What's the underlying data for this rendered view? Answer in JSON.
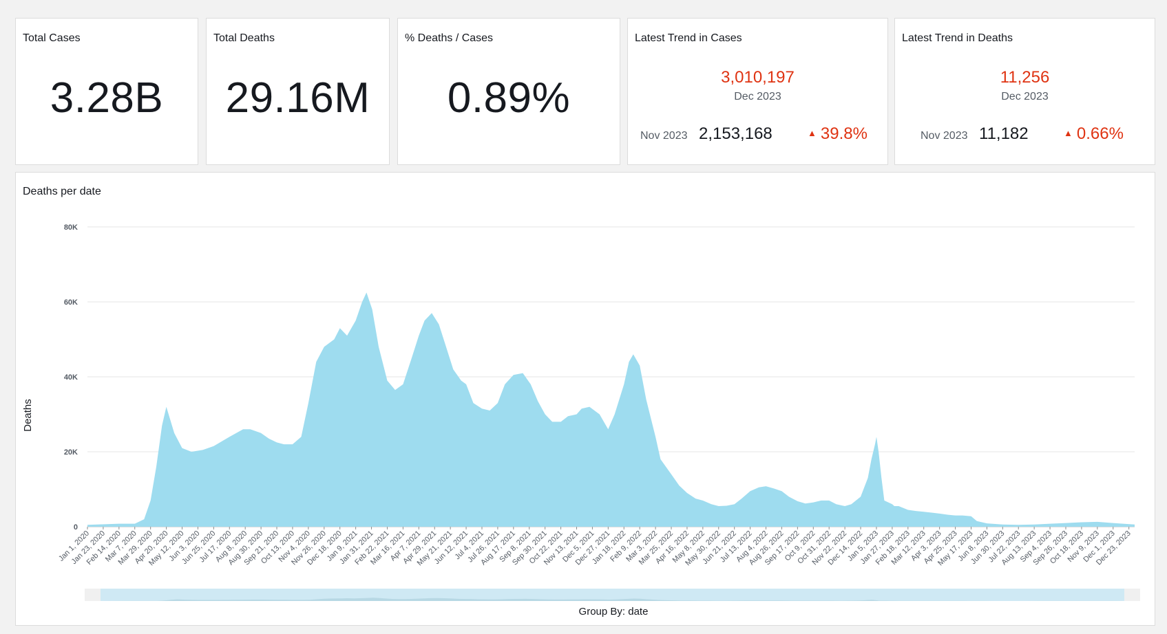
{
  "colors": {
    "accent": "#df3312",
    "area": "#9edcef",
    "grid": "#e4e4e4"
  },
  "kpis": {
    "total_cases": {
      "title": "Total Cases",
      "value": "3.28B"
    },
    "total_deaths": {
      "title": "Total Deaths",
      "value": "29.16M"
    },
    "pct_deaths": {
      "title": "% Deaths / Cases",
      "value": "0.89%"
    },
    "trend_cases": {
      "title": "Latest Trend in Cases",
      "current": "3,010,197",
      "current_period": "Dec 2023",
      "previous_period": "Nov 2023",
      "previous": "2,153,168",
      "change": "39.8%"
    },
    "trend_deaths": {
      "title": "Latest Trend in Deaths",
      "current": "11,256",
      "current_period": "Dec 2023",
      "previous_period": "Nov 2023",
      "previous": "11,182",
      "change": "0.66%"
    }
  },
  "chart": {
    "title": "Deaths per date",
    "ylabel": "Deaths",
    "group_by": "Group By: date"
  },
  "chart_data": {
    "type": "area",
    "title": "Deaths per date",
    "xlabel": "",
    "ylabel": "Deaths",
    "ylim": [
      0,
      80000
    ],
    "yticks": [
      "0",
      "20K",
      "40K",
      "60K",
      "80K"
    ],
    "x_start": "Jan 1, 2020",
    "x_end": "Dec 31, 2023",
    "xticks": [
      "Jan 1, 2020",
      "Jan 23, 2020",
      "Feb 14, 2020",
      "Mar 7, 2020",
      "Mar 29, 2020",
      "Apr 20, 2020",
      "May 12, 2020",
      "Jun 3, 2020",
      "Jun 25, 2020",
      "Jul 17, 2020",
      "Aug 8, 2020",
      "Aug 30, 2020",
      "Sep 21, 2020",
      "Oct 13, 2020",
      "Nov 4, 2020",
      "Nov 26, 2020",
      "Dec 18, 2020",
      "Jan 9, 2021",
      "Jan 31, 2021",
      "Feb 22, 2021",
      "Mar 16, 2021",
      "Apr 7, 2021",
      "Apr 29, 2021",
      "May 21, 2021",
      "Jun 12, 2021",
      "Jul 4, 2021",
      "Jul 26, 2021",
      "Aug 17, 2021",
      "Sep 8, 2021",
      "Sep 30, 2021",
      "Oct 22, 2021",
      "Nov 13, 2021",
      "Dec 5, 2021",
      "Dec 27, 2021",
      "Jan 18, 2022",
      "Feb 9, 2022",
      "Mar 3, 2022",
      "Mar 25, 2022",
      "Apr 16, 2022",
      "May 8, 2022",
      "May 30, 2022",
      "Jun 21, 2022",
      "Jul 13, 2022",
      "Aug 4, 2022",
      "Aug 26, 2022",
      "Sep 17, 2022",
      "Oct 9, 2022",
      "Oct 31, 2022",
      "Nov 22, 2022",
      "Dec 14, 2022",
      "Jan 5, 2023",
      "Jan 27, 2023",
      "Feb 18, 2023",
      "Mar 12, 2023",
      "Apr 3, 2023",
      "Apr 25, 2023",
      "May 17, 2023",
      "Jun 8, 2023",
      "Jun 30, 2023",
      "Jul 22, 2023",
      "Aug 13, 2023",
      "Sep 4, 2023",
      "Sep 26, 2023",
      "Oct 18, 2023",
      "Nov 9, 2023",
      "Dec 1, 2023",
      "Dec 23, 2023"
    ],
    "series": [
      {
        "x": [
          "2020-01-01",
          "2020-02-14",
          "2020-03-07",
          "2020-03-20",
          "2020-03-29",
          "2020-04-06",
          "2020-04-14",
          "2020-04-20",
          "2020-05-01",
          "2020-05-12",
          "2020-05-25",
          "2020-06-10",
          "2020-06-25",
          "2020-07-17",
          "2020-08-05",
          "2020-08-15",
          "2020-08-30",
          "2020-09-10",
          "2020-09-21",
          "2020-10-01",
          "2020-10-13",
          "2020-10-25",
          "2020-11-04",
          "2020-11-15",
          "2020-11-26",
          "2020-12-10",
          "2020-12-18",
          "2020-12-28",
          "2021-01-09",
          "2021-01-18",
          "2021-01-24",
          "2021-02-01",
          "2021-02-10",
          "2021-02-22",
          "2021-03-05",
          "2021-03-16",
          "2021-03-28",
          "2021-04-07",
          "2021-04-15",
          "2021-04-25",
          "2021-05-05",
          "2021-05-15",
          "2021-05-25",
          "2021-06-05",
          "2021-06-12",
          "2021-06-22",
          "2021-07-04",
          "2021-07-15",
          "2021-07-26",
          "2021-08-05",
          "2021-08-17",
          "2021-08-30",
          "2021-09-10",
          "2021-09-20",
          "2021-09-30",
          "2021-10-10",
          "2021-10-22",
          "2021-11-01",
          "2021-11-13",
          "2021-11-20",
          "2021-12-01",
          "2021-12-15",
          "2021-12-27",
          "2022-01-05",
          "2022-01-18",
          "2022-01-25",
          "2022-01-31",
          "2022-02-09",
          "2022-02-18",
          "2022-03-03",
          "2022-03-10",
          "2022-03-25",
          "2022-04-05",
          "2022-04-16",
          "2022-04-28",
          "2022-05-08",
          "2022-05-20",
          "2022-05-30",
          "2022-06-10",
          "2022-06-21",
          "2022-07-01",
          "2022-07-13",
          "2022-07-25",
          "2022-08-04",
          "2022-08-15",
          "2022-08-26",
          "2022-09-05",
          "2022-09-17",
          "2022-09-28",
          "2022-10-09",
          "2022-10-20",
          "2022-10-31",
          "2022-11-10",
          "2022-11-22",
          "2022-12-01",
          "2022-12-14",
          "2022-12-24",
          "2022-12-29",
          "2023-01-03",
          "2023-01-05",
          "2023-01-08",
          "2023-01-12",
          "2023-01-16",
          "2023-01-27",
          "2023-01-30",
          "2023-02-05",
          "2023-02-18",
          "2023-03-01",
          "2023-03-12",
          "2023-03-25",
          "2023-04-03",
          "2023-04-15",
          "2023-04-25",
          "2023-05-05",
          "2023-05-17",
          "2023-05-25",
          "2023-06-08",
          "2023-06-30",
          "2023-07-22",
          "2023-08-13",
          "2023-09-04",
          "2023-09-26",
          "2023-10-18",
          "2023-11-09",
          "2023-12-01",
          "2023-12-15",
          "2023-12-31"
        ],
        "y": [
          500,
          800,
          800,
          2000,
          7000,
          16000,
          27000,
          32000,
          25000,
          21000,
          20000,
          20500,
          21500,
          24000,
          26000,
          26000,
          25000,
          23500,
          22500,
          22000,
          22000,
          24000,
          33000,
          44000,
          48000,
          50000,
          53000,
          51000,
          55000,
          60000,
          62500,
          58000,
          48000,
          39000,
          36500,
          38000,
          45000,
          51000,
          55000,
          57000,
          54000,
          48000,
          42000,
          39000,
          38000,
          33000,
          31500,
          31000,
          33000,
          38000,
          40500,
          41000,
          38000,
          33500,
          30000,
          28000,
          28000,
          29500,
          30000,
          31500,
          32000,
          30000,
          26000,
          30000,
          38000,
          44000,
          46000,
          43000,
          34000,
          24000,
          18000,
          14000,
          11000,
          9000,
          7500,
          7000,
          6000,
          5500,
          5600,
          6000,
          7500,
          9500,
          10500,
          10800,
          10200,
          9500,
          8000,
          6800,
          6200,
          6500,
          7000,
          7000,
          6000,
          5500,
          6000,
          8000,
          13000,
          18000,
          22000,
          24000,
          20000,
          13000,
          7000,
          6000,
          5500,
          5500,
          4500,
          4200,
          4000,
          3700,
          3500,
          3200,
          3000,
          3000,
          2800,
          1500,
          900,
          600,
          500,
          600,
          800,
          1000,
          1200,
          1300,
          1000,
          800,
          600
        ]
      }
    ]
  }
}
